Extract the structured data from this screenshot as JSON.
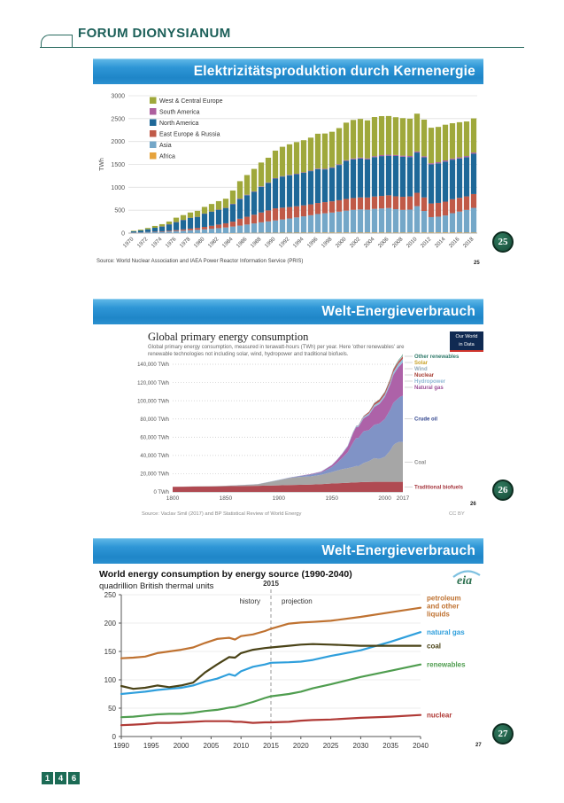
{
  "page": {
    "header": {
      "title": "FORUM DIONYSIANUM"
    },
    "footer": {
      "page_digits": [
        "1",
        "4",
        "6"
      ]
    },
    "slides": [
      {
        "title": "Elektrizitätsproduktion durch Kernenergie",
        "badge": "25",
        "slide_number": "25"
      },
      {
        "title": "Welt-Energieverbrauch",
        "badge": "26",
        "slide_number": "26"
      },
      {
        "title": "Welt-Energieverbrauch",
        "badge": "27",
        "slide_number": "27"
      }
    ]
  },
  "chart_data": [
    {
      "type": "bar",
      "stacked": true,
      "ylabel": "TWh",
      "ylim": [
        0,
        3000
      ],
      "ytick_step": 500,
      "xtick_every": 2,
      "source": "Source: World Nuclear Association and IAEA Power Reactor Information Service (PRIS)",
      "legend_order": [
        "West & Central Europe",
        "South America",
        "North America",
        "East Europe & Russia",
        "Asia",
        "Africa"
      ],
      "years": [
        1970,
        1971,
        1972,
        1973,
        1974,
        1975,
        1976,
        1977,
        1978,
        1979,
        1980,
        1981,
        1982,
        1983,
        1984,
        1985,
        1986,
        1987,
        1988,
        1989,
        1990,
        1991,
        1992,
        1993,
        1994,
        1995,
        1996,
        1997,
        1998,
        1999,
        2000,
        2001,
        2002,
        2003,
        2004,
        2005,
        2006,
        2007,
        2008,
        2009,
        2010,
        2011,
        2012,
        2013,
        2014,
        2015,
        2016,
        2017,
        2018
      ],
      "series": [
        {
          "name": "Africa",
          "color": "#e6a33c",
          "values": [
            0,
            0,
            0,
            0,
            0,
            0,
            0,
            0,
            0,
            0,
            0,
            0,
            0,
            0,
            2,
            3,
            5,
            6,
            7,
            8,
            8,
            9,
            9,
            10,
            11,
            12,
            12,
            13,
            13,
            13,
            13,
            13,
            12,
            13,
            14,
            13,
            12,
            12,
            12,
            13,
            13,
            13,
            14,
            14,
            15,
            15,
            15,
            11,
            11
          ]
        },
        {
          "name": "Asia",
          "color": "#74a7c8",
          "values": [
            9,
            12,
            17,
            22,
            28,
            35,
            44,
            54,
            64,
            72,
            83,
            95,
            108,
            122,
            140,
            160,
            182,
            205,
            228,
            248,
            268,
            288,
            310,
            332,
            355,
            378,
            405,
            420,
            435,
            455,
            478,
            495,
            505,
            498,
            515,
            525,
            535,
            510,
            495,
            500,
            575,
            470,
            335,
            345,
            370,
            420,
            455,
            495,
            540
          ]
        },
        {
          "name": "East Europe & Russia",
          "color": "#c05a48",
          "values": [
            4,
            5,
            7,
            9,
            12,
            16,
            21,
            27,
            34,
            42,
            52,
            64,
            78,
            92,
            108,
            150,
            170,
            190,
            215,
            240,
            265,
            258,
            250,
            244,
            240,
            238,
            240,
            243,
            246,
            250,
            255,
            258,
            262,
            266,
            270,
            274,
            278,
            282,
            286,
            288,
            292,
            296,
            298,
            300,
            302,
            304,
            300,
            296,
            302
          ]
        },
        {
          "name": "North America",
          "color": "#1e6898",
          "values": [
            25,
            40,
            60,
            85,
            105,
            140,
            175,
            205,
            235,
            240,
            290,
            310,
            325,
            335,
            380,
            430,
            470,
            500,
            560,
            600,
            650,
            680,
            695,
            700,
            710,
            725,
            740,
            715,
            730,
            770,
            830,
            845,
            850,
            835,
            860,
            870,
            865,
            880,
            875,
            860,
            880,
            875,
            855,
            865,
            875,
            865,
            860,
            855,
            880
          ]
        },
        {
          "name": "South America",
          "color": "#ad5f9e",
          "values": [
            0,
            0,
            0,
            0,
            2,
            2,
            2,
            2,
            2,
            2,
            2,
            2,
            2,
            2,
            10,
            11,
            11,
            11,
            11,
            10,
            10,
            10,
            10,
            11,
            12,
            12,
            13,
            14,
            14,
            15,
            16,
            20,
            20,
            20,
            21,
            22,
            22,
            22,
            23,
            23,
            23,
            24,
            24,
            25,
            25,
            25,
            26,
            26,
            27
          ]
        },
        {
          "name": "West & Central Europe",
          "color": "#9fa83b",
          "values": [
            12,
            18,
            28,
            40,
            48,
            60,
            95,
            105,
            115,
            130,
            145,
            165,
            185,
            200,
            290,
            380,
            430,
            490,
            520,
            540,
            600,
            640,
            665,
            690,
            700,
            720,
            760,
            770,
            775,
            790,
            820,
            840,
            845,
            830,
            855,
            850,
            845,
            825,
            820,
            815,
            825,
            800,
            775,
            770,
            780,
            770,
            765,
            755,
            745
          ]
        }
      ]
    },
    {
      "type": "area",
      "stacked": true,
      "title": "Global primary energy consumption",
      "subtitle": "Global primary energy consumption, measured in terawatt-hours (TWh) per year. Here 'other renewables' are renewable technologies not including solar, wind, hydropower and traditional biofuels.",
      "logo_lines": [
        "Our World",
        "in Data"
      ],
      "source": "Source: Vaclav Smil (2017) and BP Statistical Review of World Energy",
      "license": "CC BY",
      "ylim": [
        0,
        140000
      ],
      "ytick_step": 20000,
      "ytick_suffix": " TWh",
      "xticks": [
        1800,
        1850,
        1900,
        1950,
        2000,
        2017
      ],
      "x": [
        1800,
        1820,
        1840,
        1850,
        1860,
        1880,
        1900,
        1910,
        1920,
        1930,
        1940,
        1950,
        1955,
        1960,
        1965,
        1970,
        1973,
        1975,
        1980,
        1985,
        1990,
        1995,
        2000,
        2005,
        2008,
        2010,
        2013,
        2015,
        2017
      ],
      "series": [
        {
          "name": "Traditional biofuels",
          "color": "#b04a52",
          "label_color": "#a6373f",
          "values": [
            5556,
            5833,
            6100,
            6250,
            6400,
            6700,
            7200,
            7500,
            7800,
            8100,
            8600,
            9200,
            9450,
            9700,
            10000,
            10300,
            10450,
            10550,
            10800,
            10850,
            11100,
            11100,
            11100,
            11100,
            11100,
            11100,
            11100,
            11100,
            11100
          ]
        },
        {
          "name": "Coal",
          "color": "#a6a6a6",
          "label_color": "#8a8a8a",
          "values": [
            97,
            180,
            350,
            570,
            800,
            1640,
            5730,
            7660,
            8660,
            8930,
            10020,
            12600,
            14000,
            15400,
            16100,
            17060,
            17900,
            17630,
            20860,
            23000,
            25900,
            25180,
            27400,
            34060,
            40000,
            41960,
            43500,
            43790,
            43400
          ]
        },
        {
          "name": "Crude oil",
          "color": "#8093c6",
          "label_color": "#33478f",
          "values": [
            0,
            0,
            0,
            0,
            50,
            110,
            180,
            400,
            900,
            1900,
            2700,
            5400,
            8500,
            12400,
            17500,
            26600,
            31000,
            30800,
            34900,
            33900,
            36500,
            38900,
            41500,
            44800,
            46500,
            46900,
            48500,
            49800,
            51000
          ]
        },
        {
          "name": "Natural gas",
          "color": "#ad62a8",
          "label_color": "#9c4f96",
          "values": [
            0,
            0,
            0,
            0,
            0,
            30,
            60,
            140,
            250,
            600,
            870,
            2100,
            3200,
            4500,
            6300,
            10400,
            11800,
            12200,
            14200,
            16500,
            19500,
            21300,
            24100,
            27700,
            30500,
            32000,
            34100,
            34700,
            36700
          ]
        },
        {
          "name": "Hydropower",
          "color": "#97c0dc",
          "label_color": "#8fb8d4",
          "values": [
            0,
            0,
            0,
            0,
            0,
            10,
            50,
            90,
            130,
            200,
            300,
            340,
            480,
            690,
            920,
            1180,
            1340,
            1440,
            1790,
            1980,
            2160,
            2460,
            2620,
            2930,
            3210,
            3430,
            3750,
            3880,
            4060
          ]
        },
        {
          "name": "Nuclear",
          "color": "#c0504a",
          "label_color": "#a63d33",
          "values": [
            0,
            0,
            0,
            0,
            0,
            0,
            0,
            0,
            0,
            0,
            0,
            0,
            0,
            7,
            26,
            79,
            190,
            340,
            684,
            1430,
            1910,
            2230,
            2450,
            2630,
            2600,
            2630,
            2360,
            2440,
            2490
          ]
        },
        {
          "name": "Wind",
          "color": "#a4ccd8",
          "label_color": "#8fa8b8",
          "values": [
            0,
            0,
            0,
            0,
            0,
            0,
            0,
            0,
            0,
            0,
            0,
            0,
            0,
            0,
            0,
            0,
            0,
            0,
            0,
            0,
            4,
            8,
            31,
            104,
            220,
            342,
            645,
            830,
            1140
          ]
        },
        {
          "name": "Solar",
          "color": "#d9c33c",
          "label_color": "#c9a227",
          "values": [
            0,
            0,
            0,
            0,
            0,
            0,
            0,
            0,
            0,
            0,
            0,
            0,
            0,
            0,
            0,
            0,
            0,
            0,
            0,
            0,
            0,
            0,
            1,
            4,
            12,
            32,
            130,
            260,
            440
          ]
        },
        {
          "name": "Other renewables",
          "color": "#3c8c7e",
          "label_color": "#2f7a6a",
          "values": [
            0,
            0,
            0,
            0,
            0,
            0,
            0,
            0,
            0,
            0,
            0,
            0,
            0,
            0,
            30,
            60,
            80,
            90,
            130,
            230,
            370,
            450,
            530,
            600,
            650,
            680,
            750,
            800,
            840
          ]
        }
      ]
    },
    {
      "type": "line",
      "title": "World energy consumption by energy source (1990-2040)",
      "subtitle": "quadrillion British thermal units",
      "logo": "eia",
      "ylim": [
        0,
        250
      ],
      "ytick_step": 50,
      "xticks": [
        1990,
        1995,
        2000,
        2005,
        2010,
        2015,
        2020,
        2025,
        2030,
        2035,
        2040
      ],
      "divider": {
        "year": 2015,
        "label": "2015",
        "left_label": "history",
        "right_label": "projection"
      },
      "x": [
        1990,
        1992,
        1994,
        1996,
        1998,
        2000,
        2002,
        2004,
        2006,
        2008,
        2009,
        2010,
        2012,
        2014,
        2015,
        2018,
        2020,
        2022,
        2025,
        2030,
        2035,
        2040
      ],
      "series": [
        {
          "name": "petroleum and other liquids",
          "label_lines": [
            "petroleum",
            "and other",
            "liquids"
          ],
          "color": "#bf7231",
          "values": [
            138,
            139,
            141,
            147,
            150,
            153,
            157,
            165,
            172,
            174,
            171,
            177,
            180,
            186,
            190,
            199,
            201,
            202,
            204,
            211,
            219,
            227
          ]
        },
        {
          "name": "natural gas",
          "label_lines": [
            "natural gas"
          ],
          "color": "#2f9fdc",
          "values": [
            75,
            77,
            79,
            82,
            84,
            86,
            90,
            97,
            102,
            110,
            107,
            115,
            123,
            127,
            130,
            131,
            132,
            135,
            142,
            152,
            167,
            184
          ]
        },
        {
          "name": "coal",
          "label_lines": [
            "coal"
          ],
          "color": "#4a4317",
          "values": [
            89,
            84,
            86,
            90,
            87,
            90,
            95,
            113,
            127,
            140,
            139,
            147,
            153,
            156,
            157,
            160,
            162,
            163,
            162,
            160,
            160,
            160
          ]
        },
        {
          "name": "renewables",
          "label_lines": [
            "renewables"
          ],
          "color": "#4f9d4f",
          "values": [
            34,
            35,
            37,
            39,
            40,
            40,
            42,
            45,
            47,
            51,
            52,
            55,
            61,
            68,
            71,
            75,
            79,
            85,
            92,
            105,
            116,
            127
          ]
        },
        {
          "name": "nuclear",
          "label_lines": [
            "nuclear"
          ],
          "color": "#b03a36",
          "values": [
            20,
            21,
            22,
            24,
            24,
            25,
            26,
            27,
            27,
            27,
            26,
            26,
            24,
            25,
            25,
            26,
            28,
            29,
            30,
            33,
            35,
            38
          ]
        }
      ]
    }
  ]
}
